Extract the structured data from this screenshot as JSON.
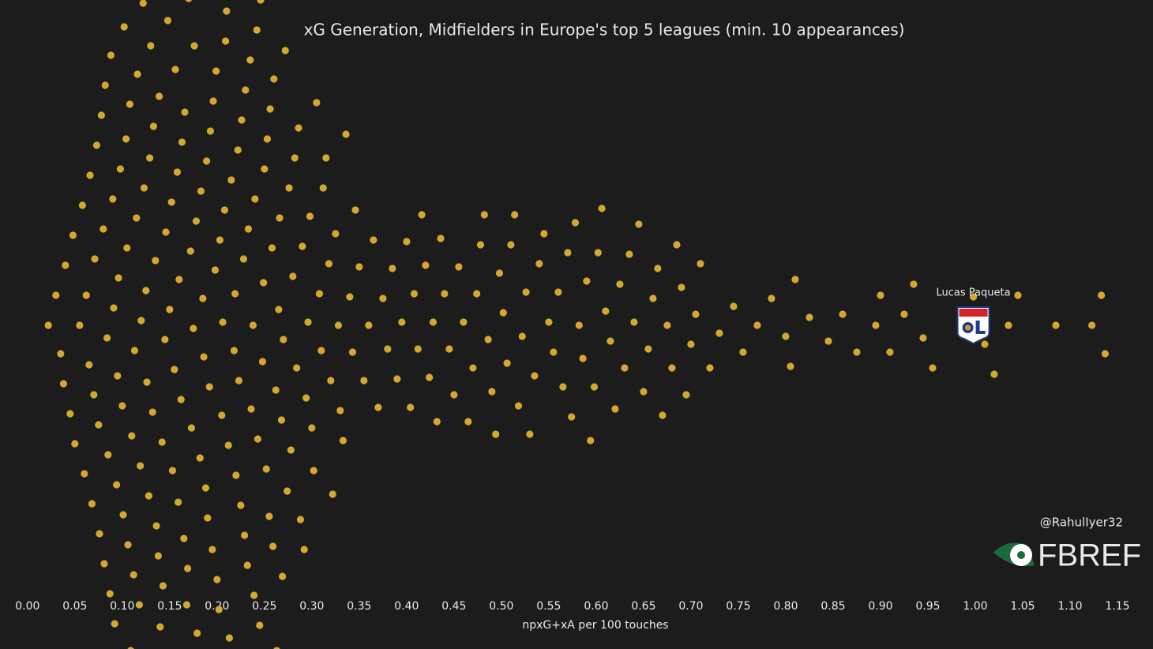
{
  "chart_data": {
    "type": "beeswarm",
    "title": "xG Generation, Midfielders in Europe's top 5 leagues (min. 10 appearances)",
    "x_label": "npxG+xA per 100 touches",
    "color": "#d4a82f",
    "xlim": [
      -0.029,
      1.1875
    ],
    "xticks": [
      {
        "value": 0,
        "label": "0.00"
      },
      {
        "value": 0.05,
        "label": "0.05"
      },
      {
        "value": 0.1,
        "label": "0.10"
      },
      {
        "value": 0.15,
        "label": "0.15"
      },
      {
        "value": 0.2,
        "label": "0.20"
      },
      {
        "value": 0.25,
        "label": "0.25"
      },
      {
        "value": 0.3,
        "label": "0.30"
      },
      {
        "value": 0.35,
        "label": "0.35"
      },
      {
        "value": 0.4,
        "label": "0.40"
      },
      {
        "value": 0.45,
        "label": "0.45"
      },
      {
        "value": 0.5,
        "label": "0.50"
      },
      {
        "value": 0.55,
        "label": "0.55"
      },
      {
        "value": 0.6,
        "label": "0.60"
      },
      {
        "value": 0.65,
        "label": "0.65"
      },
      {
        "value": 0.7,
        "label": "0.70"
      },
      {
        "value": 0.75,
        "label": "0.75"
      },
      {
        "value": 0.8,
        "label": "0.80"
      },
      {
        "value": 0.85,
        "label": "0.85"
      },
      {
        "value": 0.9,
        "label": "0.90"
      },
      {
        "value": 0.95,
        "label": "0.95"
      },
      {
        "value": 1,
        "label": "1.00"
      },
      {
        "value": 1.05,
        "label": "1.05"
      },
      {
        "value": 1.1,
        "label": "1.10"
      },
      {
        "value": 1.15,
        "label": "1.15"
      }
    ],
    "values": [
      0.022,
      0.03,
      0.035,
      0.038,
      0.04,
      0.045,
      0.048,
      0.05,
      0.055,
      0.058,
      0.06,
      0.062,
      0.065,
      0.066,
      0.068,
      0.07,
      0.071,
      0.073,
      0.075,
      0.076,
      0.078,
      0.08,
      0.081,
      0.082,
      0.084,
      0.085,
      0.087,
      0.088,
      0.09,
      0.091,
      0.092,
      0.094,
      0.095,
      0.096,
      0.098,
      0.1,
      0.101,
      0.102,
      0.104,
      0.105,
      0.106,
      0.108,
      0.109,
      0.11,
      0.112,
      0.113,
      0.115,
      0.116,
      0.118,
      0.119,
      0.12,
      0.122,
      0.123,
      0.125,
      0.126,
      0.128,
      0.129,
      0.13,
      0.132,
      0.133,
      0.135,
      0.136,
      0.138,
      0.139,
      0.14,
      0.142,
      0.143,
      0.145,
      0.146,
      0.148,
      0.149,
      0.15,
      0.152,
      0.153,
      0.155,
      0.156,
      0.158,
      0.159,
      0.16,
      0.162,
      0.163,
      0.165,
      0.166,
      0.168,
      0.169,
      0.17,
      0.172,
      0.173,
      0.175,
      0.176,
      0.178,
      0.179,
      0.18,
      0.182,
      0.183,
      0.185,
      0.186,
      0.188,
      0.189,
      0.19,
      0.192,
      0.193,
      0.195,
      0.196,
      0.198,
      0.199,
      0.2,
      0.202,
      0.203,
      0.205,
      0.206,
      0.208,
      0.209,
      0.21,
      0.212,
      0.213,
      0.215,
      0.216,
      0.218,
      0.219,
      0.22,
      0.222,
      0.223,
      0.225,
      0.226,
      0.228,
      0.229,
      0.23,
      0.232,
      0.233,
      0.235,
      0.236,
      0.238,
      0.239,
      0.24,
      0.242,
      0.243,
      0.245,
      0.246,
      0.248,
      0.249,
      0.25,
      0.252,
      0.253,
      0.255,
      0.256,
      0.258,
      0.259,
      0.26,
      0.262,
      0.263,
      0.265,
      0.266,
      0.268,
      0.269,
      0.27,
      0.272,
      0.274,
      0.276,
      0.278,
      0.28,
      0.282,
      0.284,
      0.286,
      0.288,
      0.29,
      0.292,
      0.294,
      0.296,
      0.298,
      0.3,
      0.302,
      0.305,
      0.308,
      0.31,
      0.312,
      0.315,
      0.318,
      0.32,
      0.322,
      0.325,
      0.328,
      0.33,
      0.333,
      0.336,
      0.34,
      0.343,
      0.346,
      0.35,
      0.355,
      0.36,
      0.365,
      0.37,
      0.375,
      0.38,
      0.385,
      0.39,
      0.395,
      0.4,
      0.404,
      0.408,
      0.412,
      0.416,
      0.42,
      0.424,
      0.428,
      0.432,
      0.436,
      0.44,
      0.445,
      0.45,
      0.455,
      0.46,
      0.465,
      0.47,
      0.474,
      0.478,
      0.482,
      0.486,
      0.49,
      0.494,
      0.498,
      0.502,
      0.506,
      0.51,
      0.514,
      0.518,
      0.522,
      0.526,
      0.53,
      0.535,
      0.54,
      0.545,
      0.55,
      0.555,
      0.56,
      0.565,
      0.57,
      0.574,
      0.578,
      0.582,
      0.586,
      0.59,
      0.594,
      0.598,
      0.602,
      0.606,
      0.61,
      0.615,
      0.62,
      0.625,
      0.63,
      0.635,
      0.64,
      0.645,
      0.65,
      0.655,
      0.66,
      0.665,
      0.67,
      0.675,
      0.68,
      0.685,
      0.69,
      0.695,
      0.7,
      0.705,
      0.71,
      0.72,
      0.73,
      0.745,
      0.755,
      0.77,
      0.785,
      0.8,
      0.805,
      0.81,
      0.825,
      0.845,
      0.86,
      0.875,
      0.895,
      0.9,
      0.91,
      0.925,
      0.935,
      0.945,
      0.955,
      0.985,
      0.998,
      1.01,
      1.02,
      1.035,
      1.045,
      1.085,
      1.123,
      1.133,
      1.137
    ],
    "annotation": {
      "label": "Lucas Paqueta",
      "x": 0.998
    },
    "credit": "@RahulIyer32",
    "brand": "FBREF"
  }
}
